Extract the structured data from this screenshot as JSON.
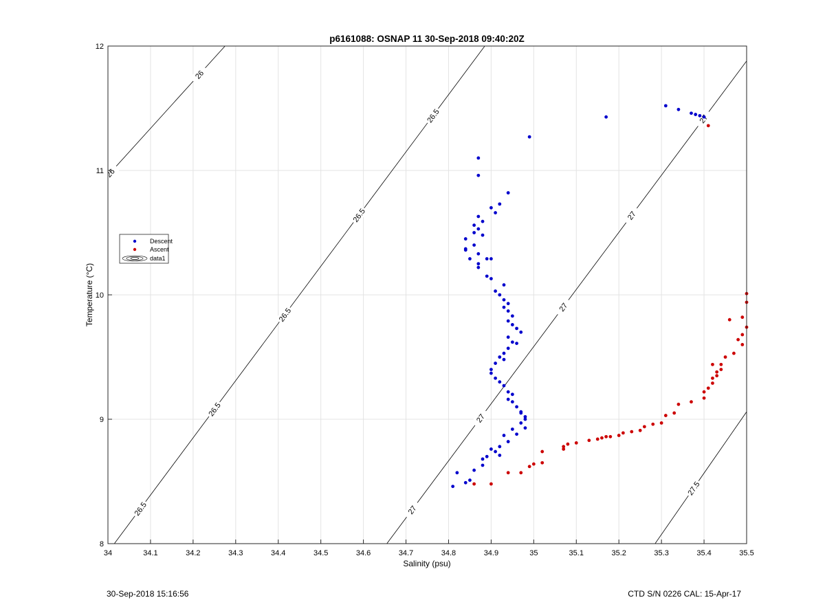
{
  "chart_data": {
    "type": "scatter",
    "title": "p6161088: OSNAP 11 30-Sep-2018 09:40:20Z",
    "xlabel": "Salinity (psu)",
    "ylabel": "Temperature (°C)",
    "xlim": [
      34,
      35.5
    ],
    "ylim": [
      8,
      12
    ],
    "xticks": [
      "34",
      "34.1",
      "34.2",
      "34.3",
      "34.4",
      "34.5",
      "34.6",
      "34.7",
      "34.8",
      "34.9",
      "35",
      "35.1",
      "35.2",
      "35.3",
      "35.4",
      "35.5"
    ],
    "yticks": [
      "8",
      "9",
      "10",
      "11",
      "12"
    ],
    "grid": true,
    "legend_position": "left-middle",
    "legend": [
      {
        "label": "Descent",
        "marker": "dot",
        "color": "#0000cc"
      },
      {
        "label": "Ascent",
        "marker": "dot",
        "color": "#cc0000"
      },
      {
        "label": "data1",
        "marker": "contour",
        "color": "#000000"
      }
    ],
    "contour_levels": [
      {
        "label": "26",
        "sigma": 26
      },
      {
        "label": "26.5",
        "sigma": 26.5
      },
      {
        "label": "27",
        "sigma": 27
      },
      {
        "label": "27.5",
        "sigma": 27.5
      }
    ],
    "series": [
      {
        "name": "Descent",
        "color": "#0000cc",
        "points": [
          [
            34.81,
            8.46
          ],
          [
            34.82,
            8.57
          ],
          [
            34.84,
            8.49
          ],
          [
            34.85,
            8.51
          ],
          [
            34.86,
            8.59
          ],
          [
            34.88,
            8.63
          ],
          [
            34.88,
            8.68
          ],
          [
            34.89,
            8.7
          ],
          [
            34.9,
            8.76
          ],
          [
            34.91,
            8.74
          ],
          [
            34.92,
            8.78
          ],
          [
            34.92,
            8.71
          ],
          [
            34.93,
            8.87
          ],
          [
            34.94,
            8.82
          ],
          [
            34.95,
            8.92
          ],
          [
            34.96,
            8.88
          ],
          [
            34.97,
            8.97
          ],
          [
            34.98,
            8.93
          ],
          [
            34.98,
            9.0
          ],
          [
            34.98,
            9.02
          ],
          [
            34.97,
            9.05
          ],
          [
            34.97,
            9.06
          ],
          [
            34.96,
            9.1
          ],
          [
            34.95,
            9.14
          ],
          [
            34.94,
            9.16
          ],
          [
            34.95,
            9.2
          ],
          [
            34.94,
            9.22
          ],
          [
            34.93,
            9.27
          ],
          [
            34.92,
            9.3
          ],
          [
            34.91,
            9.33
          ],
          [
            34.9,
            9.37
          ],
          [
            34.9,
            9.4
          ],
          [
            34.91,
            9.45
          ],
          [
            34.92,
            9.5
          ],
          [
            34.93,
            9.48
          ],
          [
            34.93,
            9.53
          ],
          [
            34.94,
            9.57
          ],
          [
            34.96,
            9.61
          ],
          [
            34.95,
            9.62
          ],
          [
            34.94,
            9.66
          ],
          [
            34.97,
            9.7
          ],
          [
            34.96,
            9.73
          ],
          [
            34.95,
            9.76
          ],
          [
            34.94,
            9.79
          ],
          [
            34.95,
            9.83
          ],
          [
            34.94,
            9.87
          ],
          [
            34.93,
            9.9
          ],
          [
            34.94,
            9.93
          ],
          [
            34.93,
            9.96
          ],
          [
            34.92,
            10.0
          ],
          [
            34.91,
            10.03
          ],
          [
            34.93,
            10.08
          ],
          [
            34.9,
            10.13
          ],
          [
            34.89,
            10.15
          ],
          [
            34.87,
            10.22
          ],
          [
            34.87,
            10.25
          ],
          [
            34.85,
            10.29
          ],
          [
            34.9,
            10.29
          ],
          [
            34.89,
            10.29
          ],
          [
            34.87,
            10.33
          ],
          [
            34.84,
            10.36
          ],
          [
            34.84,
            10.37
          ],
          [
            34.86,
            10.4
          ],
          [
            34.88,
            10.48
          ],
          [
            34.86,
            10.5
          ],
          [
            34.84,
            10.45
          ],
          [
            34.87,
            10.53
          ],
          [
            34.86,
            10.56
          ],
          [
            34.88,
            10.59
          ],
          [
            34.87,
            10.63
          ],
          [
            34.91,
            10.66
          ],
          [
            34.9,
            10.7
          ],
          [
            34.92,
            10.73
          ],
          [
            34.94,
            10.82
          ],
          [
            34.87,
            10.96
          ],
          [
            34.87,
            11.1
          ],
          [
            34.99,
            11.27
          ],
          [
            35.17,
            11.43
          ],
          [
            35.31,
            11.52
          ],
          [
            35.34,
            11.49
          ],
          [
            35.37,
            11.46
          ],
          [
            35.38,
            11.45
          ],
          [
            35.39,
            11.44
          ],
          [
            35.4,
            11.43
          ]
        ]
      },
      {
        "name": "Ascent",
        "color": "#cc0000",
        "points": [
          [
            34.86,
            8.48
          ],
          [
            34.9,
            8.48
          ],
          [
            34.94,
            8.57
          ],
          [
            34.97,
            8.57
          ],
          [
            34.99,
            8.62
          ],
          [
            35.0,
            8.64
          ],
          [
            35.02,
            8.65
          ],
          [
            35.02,
            8.74
          ],
          [
            35.07,
            8.76
          ],
          [
            35.07,
            8.78
          ],
          [
            35.08,
            8.8
          ],
          [
            35.1,
            8.81
          ],
          [
            35.13,
            8.83
          ],
          [
            35.15,
            8.84
          ],
          [
            35.16,
            8.85
          ],
          [
            35.17,
            8.86
          ],
          [
            35.18,
            8.86
          ],
          [
            35.2,
            8.87
          ],
          [
            35.21,
            8.89
          ],
          [
            35.23,
            8.9
          ],
          [
            35.25,
            8.91
          ],
          [
            35.26,
            8.94
          ],
          [
            35.28,
            8.96
          ],
          [
            35.3,
            8.97
          ],
          [
            35.31,
            9.03
          ],
          [
            35.33,
            9.05
          ],
          [
            35.34,
            9.12
          ],
          [
            35.37,
            9.14
          ],
          [
            35.4,
            9.17
          ],
          [
            35.4,
            9.22
          ],
          [
            35.41,
            9.25
          ],
          [
            35.42,
            9.29
          ],
          [
            35.42,
            9.33
          ],
          [
            35.43,
            9.35
          ],
          [
            35.43,
            9.38
          ],
          [
            35.44,
            9.4
          ],
          [
            35.44,
            9.44
          ],
          [
            35.42,
            9.44
          ],
          [
            35.45,
            9.5
          ],
          [
            35.46,
            9.8
          ],
          [
            35.47,
            9.53
          ],
          [
            35.48,
            9.64
          ],
          [
            35.49,
            9.6
          ],
          [
            35.49,
            9.68
          ],
          [
            35.5,
            9.74
          ],
          [
            35.49,
            9.82
          ],
          [
            35.5,
            9.94
          ],
          [
            35.5,
            10.01
          ],
          [
            35.41,
            11.36
          ]
        ]
      }
    ],
    "footer_left": "30-Sep-2018 15:16:56",
    "footer_right": "CTD S/N 0226  CAL: 15-Apr-17"
  }
}
